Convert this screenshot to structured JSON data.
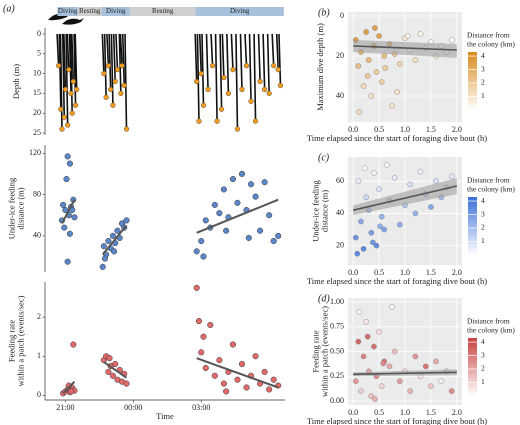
{
  "chart_data": [
    {
      "type": "dive-profile",
      "panel_label": "(a)",
      "ylabel": [
        "Depth (m)"
      ],
      "color": "#f39c1f",
      "y_reversed": true,
      "xlim": [
        -0.9,
        9.7
      ],
      "ylim": [
        -1.5,
        25.5
      ],
      "yticks": [
        0,
        5,
        10,
        15,
        20,
        25
      ],
      "phases": [
        {
          "label": "Diving",
          "start": -0.35,
          "end": 0.55,
          "color": "#a7c1dc"
        },
        {
          "label": "Resting",
          "start": 0.55,
          "end": 1.6,
          "color": "#cfcfcf"
        },
        {
          "label": "Diving",
          "start": 1.6,
          "end": 2.85,
          "color": "#a7c1dc"
        },
        {
          "label": "Resting",
          "start": 2.85,
          "end": 5.75,
          "color": "#cfcfcf"
        },
        {
          "label": "Diving",
          "start": 5.75,
          "end": 9.65,
          "color": "#a7c1dc"
        }
      ],
      "x": [
        -0.3,
        -0.2,
        -0.15,
        -0.05,
        0,
        0.1,
        0.15,
        0.25,
        0.3,
        0.35,
        0.45,
        0.5,
        1.7,
        1.8,
        1.9,
        2.0,
        2.1,
        2.2,
        2.3,
        2.45,
        2.6,
        2.7,
        2.5,
        5.8,
        5.9,
        6.0,
        6.1,
        6.3,
        6.5,
        6.7,
        6.9,
        7.0,
        7.2,
        7.4,
        7.6,
        7.8,
        8.0,
        8.2,
        8.4,
        8.6,
        8.8,
        9.0,
        9.2,
        9.4,
        9.5
      ],
      "values": [
        8,
        19,
        24,
        21,
        14,
        23,
        9,
        15,
        20,
        12,
        18,
        14,
        10,
        16,
        8,
        14,
        18,
        12,
        9,
        15,
        13,
        24,
        8,
        12,
        22,
        10,
        18,
        14,
        8,
        22,
        19,
        11,
        15,
        9,
        24,
        14,
        8,
        17,
        22,
        12,
        14,
        15,
        8,
        9,
        13
      ]
    },
    {
      "type": "scatter",
      "ylabel": [
        "Under-ice feeding",
        "distance (m)"
      ],
      "color": "#5b86c8",
      "xlim": [
        -0.9,
        9.7
      ],
      "ylim": [
        5,
        128
      ],
      "yticks": [
        40,
        80,
        120
      ],
      "x": [
        -0.15,
        -0.1,
        0,
        0.05,
        0.1,
        0.15,
        0.2,
        0.25,
        0.3,
        0.35,
        0.4,
        0.1,
        0.2,
        -0.05,
        1.65,
        1.7,
        1.8,
        1.9,
        2.0,
        2.1,
        2.2,
        2.3,
        2.4,
        2.5,
        2.6,
        2.7,
        1.75,
        2.15,
        5.8,
        6.0,
        6.2,
        6.4,
        6.6,
        6.8,
        7.0,
        7.2,
        7.4,
        7.6,
        7.8,
        8.0,
        8.2,
        8.4,
        8.6,
        8.8,
        9.0,
        9.2,
        9.4,
        6.1,
        7.1,
        8.1
      ],
      "values": [
        55,
        70,
        65,
        95,
        117,
        60,
        110,
        68,
        65,
        75,
        58,
        15,
        42,
        48,
        10,
        30,
        22,
        35,
        28,
        40,
        33,
        45,
        38,
        52,
        48,
        55,
        18,
        25,
        25,
        35,
        55,
        48,
        70,
        62,
        85,
        58,
        95,
        72,
        100,
        65,
        90,
        78,
        45,
        92,
        60,
        35,
        40,
        20,
        45,
        38
      ],
      "fits": [
        {
          "x": [
            -0.15,
            0.4
          ],
          "y": [
            52,
            75
          ]
        },
        {
          "x": [
            1.65,
            2.7
          ],
          "y": [
            22,
            50
          ]
        },
        {
          "x": [
            5.8,
            9.4
          ],
          "y": [
            43,
            75
          ]
        }
      ]
    },
    {
      "type": "scatter",
      "ylabel": [
        "Feeding rate",
        "within a patch (events/sec)"
      ],
      "color": "#e06a6a",
      "xlabel": "Time",
      "xlim": [
        -0.9,
        9.7
      ],
      "ylim": [
        -0.12,
        2.9
      ],
      "yticks": [
        0,
        1,
        2
      ],
      "xticks": [
        {
          "value": 0,
          "label": "21:00"
        },
        {
          "value": 3,
          "label": "00:00"
        },
        {
          "value": 6,
          "label": "03:00"
        }
      ],
      "x": [
        -0.1,
        0,
        0.1,
        0.2,
        0.3,
        0.35,
        0.4,
        0.15,
        0.25,
        1.7,
        1.8,
        1.9,
        2.0,
        2.1,
        2.2,
        2.3,
        2.4,
        2.5,
        2.6,
        2.7,
        1.95,
        5.8,
        5.9,
        6.0,
        6.2,
        6.4,
        6.6,
        6.8,
        7.0,
        7.2,
        7.4,
        7.6,
        7.8,
        8.0,
        8.2,
        8.4,
        8.6,
        8.8,
        9.0,
        9.2,
        9.4,
        6.1,
        7.1
      ],
      "values": [
        0.05,
        0.1,
        0.15,
        0.08,
        0.2,
        1.3,
        0.12,
        0.25,
        0.1,
        0.9,
        1.0,
        0.6,
        0.75,
        0.5,
        0.8,
        0.4,
        0.65,
        0.35,
        0.55,
        0.3,
        0.95,
        2.75,
        1.9,
        1.1,
        0.7,
        1.8,
        0.5,
        0.9,
        0.3,
        0.6,
        1.3,
        0.4,
        0.8,
        0.2,
        0.5,
        1.0,
        0.3,
        0.6,
        0.15,
        0.4,
        0.25,
        1.5,
        0.1
      ],
      "fits": [
        {
          "x": [
            -0.1,
            0.4
          ],
          "y": [
            0.05,
            0.35
          ]
        },
        {
          "x": [
            1.7,
            2.7
          ],
          "y": [
            0.85,
            0.45
          ]
        },
        {
          "x": [
            5.8,
            9.4
          ],
          "y": [
            0.95,
            0.2
          ]
        }
      ]
    },
    {
      "type": "color-scatter",
      "panel_label": "(b)",
      "ylabel": [
        "Maximum dive depth (m)"
      ],
      "xlabel": "Time elapsed since the start of foraging dive bout (h)",
      "y_reversed": true,
      "xlim": [
        -0.1,
        2.1
      ],
      "ylim": [
        -2,
        53
      ],
      "yticks": [
        0,
        20,
        40
      ],
      "xticks": [
        {
          "value": 0,
          "label": "0.0"
        },
        0.5,
        {
          "value": 1,
          "label": "1.0"
        },
        1.5,
        {
          "value": 2,
          "label": "2.0"
        }
      ],
      "colorbar": {
        "title": [
          "Distance from",
          "the colony (km)"
        ],
        "lim": [
          0,
          4.3
        ],
        "ticks": [
          1,
          2,
          3,
          4
        ],
        "low": "#ffffff",
        "high": "#d98a1f"
      },
      "x": [
        0.05,
        0.1,
        0.15,
        0.2,
        0.25,
        0.3,
        0.35,
        0.4,
        0.45,
        0.5,
        0.55,
        0.6,
        0.7,
        0.75,
        0.8,
        0.9,
        1.0,
        1.1,
        1.2,
        1.3,
        1.4,
        1.5,
        1.6,
        1.7,
        1.8,
        1.9,
        0.12,
        0.28,
        0.42,
        0.62,
        0.85,
        1.05
      ],
      "values": [
        12,
        25,
        18,
        35,
        8,
        22,
        40,
        15,
        28,
        10,
        33,
        20,
        14,
        45,
        19,
        24,
        11,
        17,
        22,
        9,
        16,
        13,
        20,
        15,
        18,
        12,
        48,
        30,
        6,
        26,
        38,
        10
      ],
      "distance": [
        3.8,
        2.5,
        3.2,
        1.5,
        3.9,
        2.8,
        1.2,
        3.5,
        2.0,
        3.7,
        1.8,
        2.6,
        3.0,
        1.0,
        2.2,
        1.6,
        0.8,
        0.5,
        1.2,
        0.4,
        0.7,
        0.3,
        0.9,
        0.2,
        0.6,
        0.1,
        1.4,
        2.1,
        3.6,
        1.9,
        1.1,
        0.5
      ],
      "fit": {
        "x": [
          0,
          2
        ],
        "y": [
          15,
          17
        ],
        "lower": [
          12,
          14
        ],
        "upper": [
          18,
          21
        ]
      }
    },
    {
      "type": "color-scatter",
      "panel_label": "(c)",
      "ylabel": [
        "Under-ice feeding",
        "distance (m)"
      ],
      "xlabel": "Time elapsed since the start of foraging dive bout (h)",
      "xlim": [
        -0.1,
        2.1
      ],
      "ylim": [
        8,
        75
      ],
      "yticks": [
        20,
        40,
        60
      ],
      "xticks": [
        {
          "value": 0,
          "label": "0.0"
        },
        0.5,
        {
          "value": 1,
          "label": "1.0"
        },
        1.5,
        {
          "value": 2,
          "label": "2.0"
        }
      ],
      "colorbar": {
        "title": [
          "Distance from",
          "the colony (km)"
        ],
        "lim": [
          0,
          4.3
        ],
        "ticks": [
          1,
          2,
          3,
          4
        ],
        "low": "#ffffff",
        "high": "#3a6fd8"
      },
      "x": [
        0.05,
        0.1,
        0.15,
        0.2,
        0.25,
        0.3,
        0.35,
        0.4,
        0.45,
        0.5,
        0.55,
        0.6,
        0.7,
        0.8,
        0.9,
        1.0,
        1.1,
        1.2,
        1.3,
        1.4,
        1.5,
        1.6,
        1.7,
        1.8,
        1.9,
        0.08,
        0.22,
        0.38,
        0.52,
        0.65
      ],
      "values": [
        25,
        60,
        35,
        18,
        50,
        42,
        28,
        65,
        20,
        55,
        38,
        30,
        48,
        62,
        33,
        45,
        58,
        40,
        66,
        52,
        44,
        60,
        50,
        56,
        63,
        15,
        68,
        22,
        32,
        70
      ],
      "distance": [
        3.5,
        0.5,
        2.8,
        3.9,
        1.2,
        2.0,
        3.2,
        0.3,
        3.7,
        0.8,
        2.4,
        3.0,
        1.5,
        0.6,
        2.7,
        1.8,
        0.9,
        2.5,
        0.4,
        1.6,
        2.9,
        1.0,
        2.2,
        1.3,
        0.7,
        3.8,
        0.2,
        3.4,
        2.6,
        0.1
      ],
      "fit": {
        "x": [
          0,
          2
        ],
        "y": [
          42,
          57
        ],
        "lower": [
          39,
          52
        ],
        "upper": [
          45,
          62
        ]
      }
    },
    {
      "type": "color-scatter",
      "panel_label": "(d)",
      "ylabel": [
        "Feeding rate",
        "within a patch (events/sec)"
      ],
      "xlabel": "Time elapsed since the start of foraging dive bout (h)",
      "xlim": [
        -0.1,
        2.1
      ],
      "ylim": [
        -0.04,
        1.04
      ],
      "yticks": [
        {
          "value": 0,
          "label": "0.00"
        },
        0.25,
        {
          "value": 0.5,
          "label": "0.50"
        },
        0.75,
        {
          "value": 1,
          "label": "1.00"
        }
      ],
      "xticks": [
        {
          "value": 0,
          "label": "0.0"
        },
        0.5,
        {
          "value": 1,
          "label": "1.0"
        },
        1.5,
        {
          "value": 2,
          "label": "2.0"
        }
      ],
      "colorbar": {
        "title": [
          "Distance from",
          "the colony (km)"
        ],
        "lim": [
          0,
          4.3
        ],
        "ticks": [
          1,
          2,
          3,
          4
        ],
        "low": "#ffffff",
        "high": "#c84040"
      },
      "x": [
        0.05,
        0.1,
        0.15,
        0.2,
        0.25,
        0.3,
        0.35,
        0.4,
        0.45,
        0.5,
        0.55,
        0.6,
        0.7,
        0.8,
        0.9,
        1.0,
        1.1,
        1.2,
        1.3,
        1.4,
        1.5,
        1.6,
        1.7,
        1.8,
        1.9,
        0.12,
        0.28,
        0.42,
        0.58,
        0.75
      ],
      "values": [
        0.2,
        0.6,
        0.1,
        0.45,
        0.8,
        0.3,
        0.05,
        0.55,
        0.25,
        0.7,
        0.15,
        0.4,
        0.35,
        0.5,
        0.2,
        0.3,
        0.1,
        0.45,
        0.25,
        0.35,
        0.15,
        0.4,
        0.2,
        0.3,
        0.1,
        0.9,
        0.65,
        0.02,
        0.38,
        0.95
      ],
      "distance": [
        2.5,
        3.8,
        1.2,
        3.0,
        0.5,
        2.2,
        1.5,
        3.5,
        2.8,
        0.8,
        1.0,
        3.2,
        2.0,
        1.6,
        2.4,
        0.9,
        1.8,
        2.6,
        0.6,
        3.4,
        1.4,
        2.1,
        0.4,
        1.1,
        2.9,
        0.3,
        3.6,
        1.9,
        2.7,
        0.2
      ],
      "fit": {
        "x": [
          0,
          2
        ],
        "y": [
          0.27,
          0.29
        ],
        "lower": [
          0.25,
          0.26
        ],
        "upper": [
          0.29,
          0.32
        ]
      }
    }
  ]
}
